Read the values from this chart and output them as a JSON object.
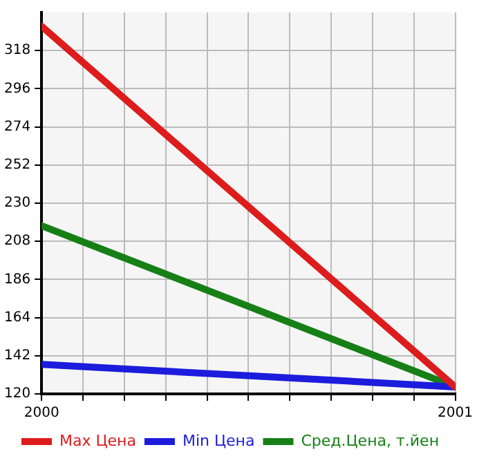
{
  "chart_data": {
    "type": "line",
    "x": [
      2000,
      2001
    ],
    "series": [
      {
        "name": "Max Цена",
        "color": "#dd1c1c",
        "values": [
          332,
          124
        ]
      },
      {
        "name": "Min Цена",
        "color": "#1c1cdd",
        "values": [
          137,
          124
        ]
      },
      {
        "name": "Сред.Цена, т.йен",
        "color": "#168016",
        "values": [
          217,
          124
        ]
      }
    ],
    "xlim": [
      2000,
      2001
    ],
    "xticks": [
      2000,
      {
        "value": 2000.1,
        "label": null
      },
      {
        "value": 2000.2,
        "label": null
      },
      {
        "value": 2000.3,
        "label": null
      },
      {
        "value": 2000.4,
        "label": null
      },
      {
        "value": 2000.5,
        "label": null
      },
      {
        "value": 2000.6,
        "label": null
      },
      {
        "value": 2000.7,
        "label": null
      },
      {
        "value": 2000.8,
        "label": null
      },
      {
        "value": 2000.9,
        "label": null
      },
      2001
    ],
    "ylim": [
      120,
      340
    ],
    "yticks": [
      120,
      142,
      164,
      186,
      208,
      230,
      252,
      274,
      296,
      318
    ],
    "grid": true,
    "legend": "bottom",
    "marker": "none",
    "line_style": "solid"
  }
}
